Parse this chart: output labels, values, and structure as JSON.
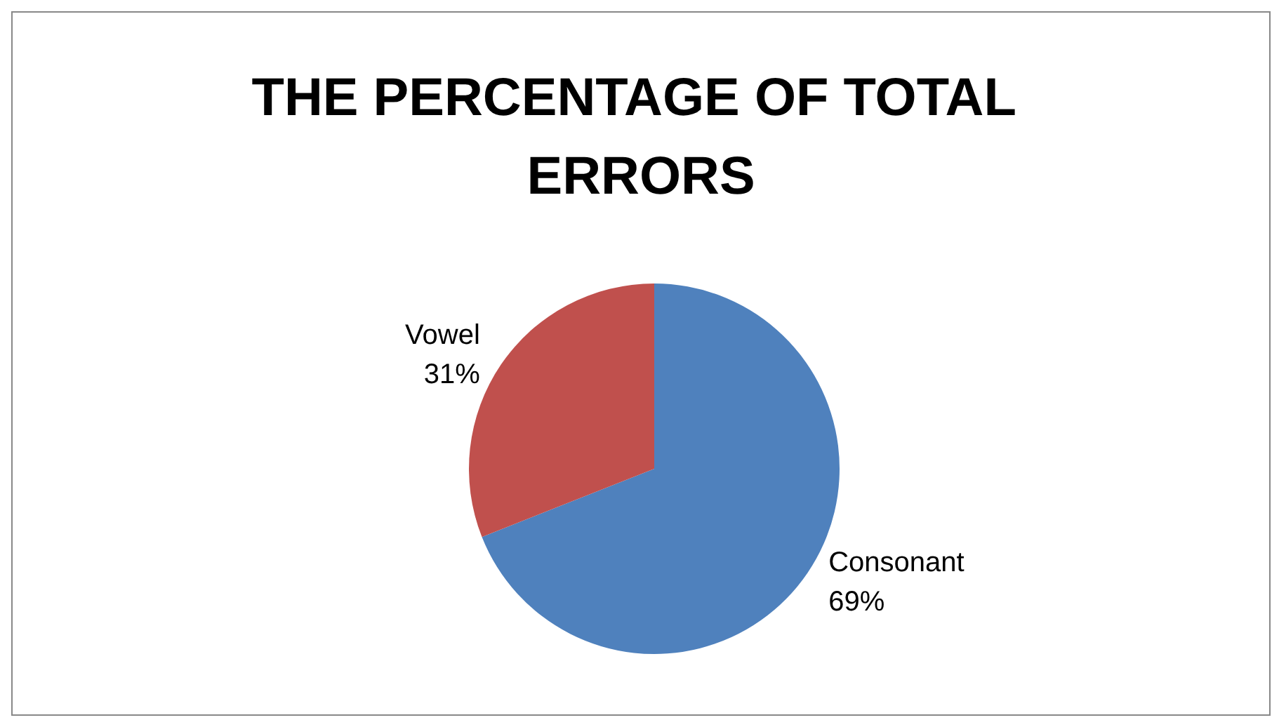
{
  "chart_data": {
    "type": "pie",
    "title": "THE PERCENTAGE OF TOTAL ERRORS",
    "categories": [
      "Consonant",
      "Vowel"
    ],
    "values": [
      69,
      31
    ],
    "colors": [
      "#4f81bd",
      "#c0504d"
    ],
    "value_labels": [
      "69%",
      "31%"
    ],
    "legend": false
  }
}
